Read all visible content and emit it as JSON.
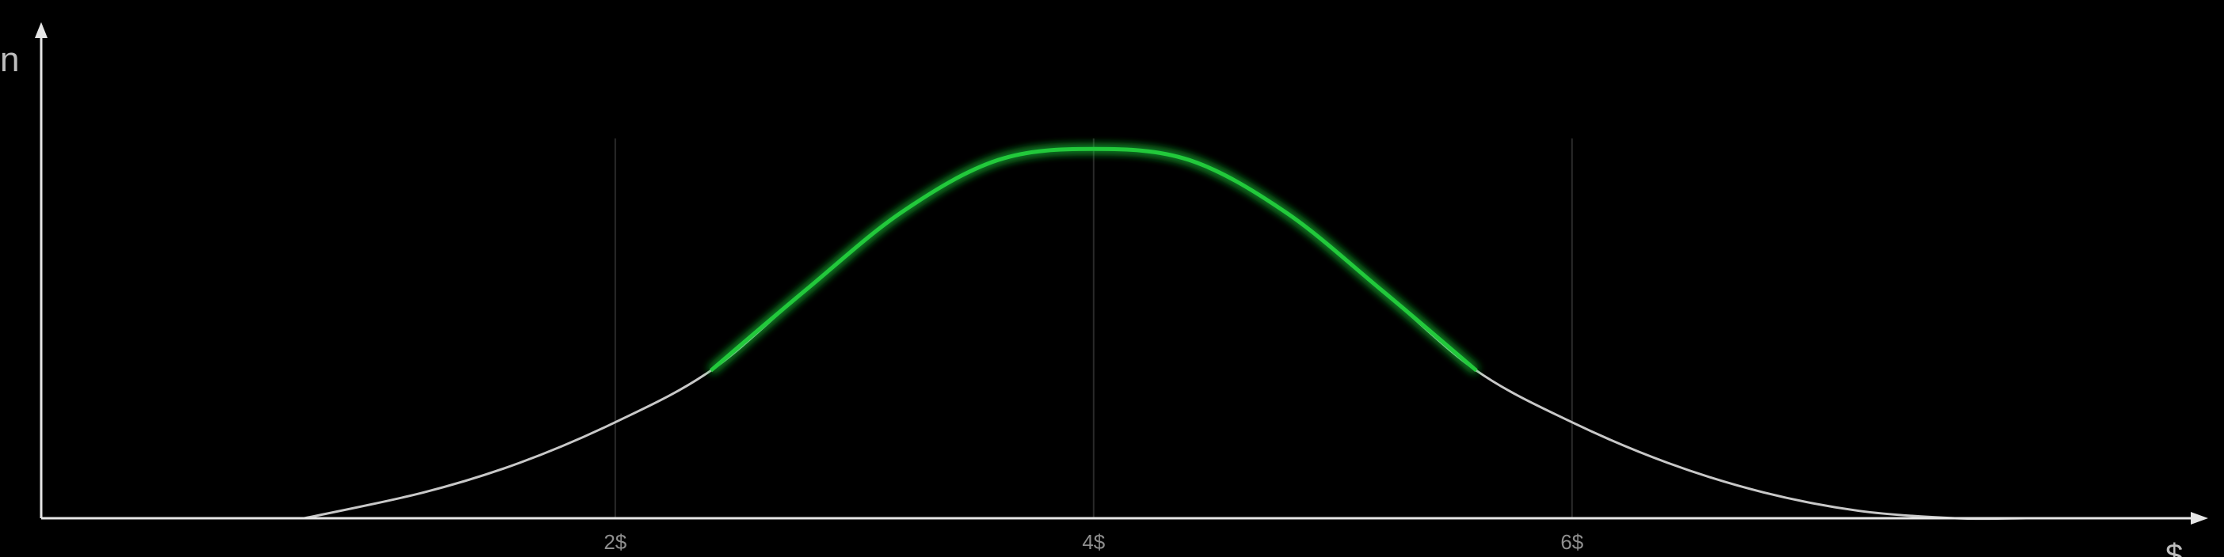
{
  "chart_data": {
    "type": "line",
    "title": "",
    "xlabel": "$",
    "ylabel": "n",
    "grid": true,
    "xlim": [
      -0.4,
      8.6
    ],
    "ylim": [
      0,
      1.2
    ],
    "x_ticks": [
      2,
      4,
      6
    ],
    "x_tick_labels": [
      "2$",
      "4$",
      "6$"
    ],
    "series": [
      {
        "x": [
          0.7,
          1.2,
          1.6,
          2.0,
          2.4,
          2.8,
          3.2,
          3.6,
          4.0,
          4.4,
          4.8,
          5.2,
          5.6,
          6.0,
          6.4,
          6.8,
          7.2,
          7.6,
          7.9
        ],
        "y": [
          0.0,
          0.07,
          0.15,
          0.26,
          0.4,
          0.62,
          0.83,
          0.97,
          1.0,
          0.97,
          0.83,
          0.62,
          0.4,
          0.26,
          0.15,
          0.07,
          0.02,
          0.0,
          0.0
        ]
      }
    ],
    "highlight_range": [
      2.4,
      5.6
    ],
    "colors": {
      "background": "#000000",
      "axis": "#e6e6e6",
      "curve": "#c8c8c8",
      "highlight": "#22c93a",
      "grid": "#2a2a2a",
      "tick_text": "#8e8e8e"
    }
  }
}
